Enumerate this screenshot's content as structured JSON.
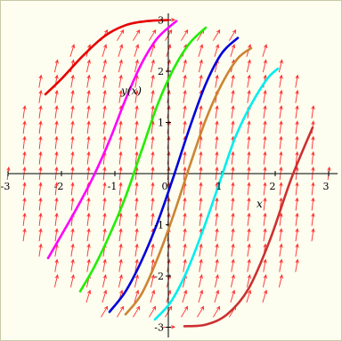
{
  "chart_data": {
    "type": "line",
    "title": "",
    "xlabel": "x",
    "ylabel": "y(x)",
    "xlim": [
      -3.2,
      3.2
    ],
    "ylim": [
      -3.1,
      3.1
    ],
    "x_ticks": [
      "-3",
      "-2",
      "-1",
      "0",
      "1",
      "2",
      "3"
    ],
    "y_ticks": [
      "3",
      "2",
      "1",
      "-1",
      "-2",
      "-3"
    ],
    "grid": false,
    "direction_field": {
      "color": "#ff0000",
      "region": "disk",
      "radius": 3
    },
    "series": [
      {
        "color": "#e60000",
        "x": [
          -2.3,
          -2.0,
          -1.6,
          -1.2,
          -0.8,
          -0.4,
          0.0
        ],
        "y": [
          1.55,
          1.85,
          2.3,
          2.68,
          2.9,
          2.98,
          3.0
        ]
      },
      {
        "color": "#ff00ff",
        "x": [
          -2.25,
          -2.0,
          -1.7,
          -1.4,
          -1.1,
          -0.8,
          -0.5,
          -0.2,
          0.15
        ],
        "y": [
          -1.65,
          -1.2,
          -0.65,
          -0.05,
          0.65,
          1.45,
          2.15,
          2.65,
          2.98
        ]
      },
      {
        "color": "#22ee00",
        "x": [
          -1.65,
          -1.4,
          -1.1,
          -0.8,
          -0.5,
          -0.2,
          0.1,
          0.4,
          0.7
        ],
        "y": [
          -2.3,
          -1.85,
          -1.2,
          -0.45,
          0.45,
          1.35,
          2.05,
          2.55,
          2.85
        ]
      },
      {
        "color": "#0000dd",
        "x": [
          -1.1,
          -0.8,
          -0.5,
          -0.2,
          0.1,
          0.4,
          0.7,
          1.0,
          1.3
        ],
        "y": [
          -2.7,
          -2.3,
          -1.7,
          -0.95,
          -0.05,
          0.9,
          1.75,
          2.35,
          2.65
        ]
      },
      {
        "color": "#cc8533",
        "x": [
          -0.8,
          -0.5,
          -0.2,
          0.1,
          0.4,
          0.7,
          1.0,
          1.3,
          1.55
        ],
        "y": [
          -2.75,
          -2.35,
          -1.65,
          -0.8,
          0.15,
          1.05,
          1.75,
          2.25,
          2.45
        ]
      },
      {
        "color": "#00eeee",
        "x": [
          -0.25,
          0.05,
          0.35,
          0.65,
          0.95,
          1.25,
          1.55,
          1.85,
          2.05
        ],
        "y": [
          -2.85,
          -2.5,
          -1.9,
          -1.1,
          -0.2,
          0.7,
          1.35,
          1.85,
          2.05
        ]
      },
      {
        "color": "#cc3030",
        "x": [
          0.3,
          0.7,
          1.1,
          1.5,
          1.9,
          2.3,
          2.7
        ],
        "y": [
          -2.98,
          -2.95,
          -2.75,
          -2.25,
          -1.3,
          -0.1,
          0.9
        ]
      }
    ]
  }
}
